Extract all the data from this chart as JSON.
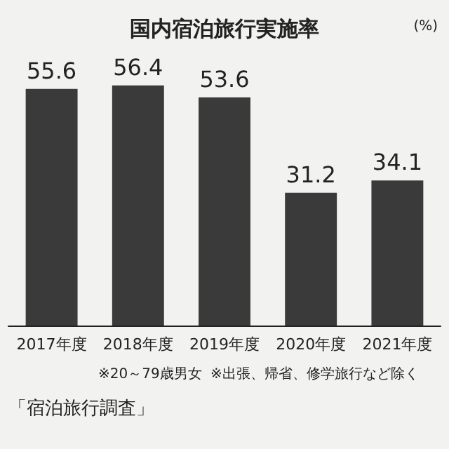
{
  "chart_data": {
    "type": "bar",
    "title": "国内宿泊旅行実施率",
    "ylabel": "(%)",
    "categories": [
      "2017年度",
      "2018年度",
      "2019年度",
      "2020年度",
      "2021年度"
    ],
    "values": [
      55.6,
      56.4,
      53.6,
      31.2,
      34.1
    ],
    "color": "#3a3a3a",
    "data_labels": true,
    "annotations": [
      "※20～79歳男女",
      "※出張、帰省、修学旅行など除く",
      "「宿泊旅行調査」"
    ]
  }
}
